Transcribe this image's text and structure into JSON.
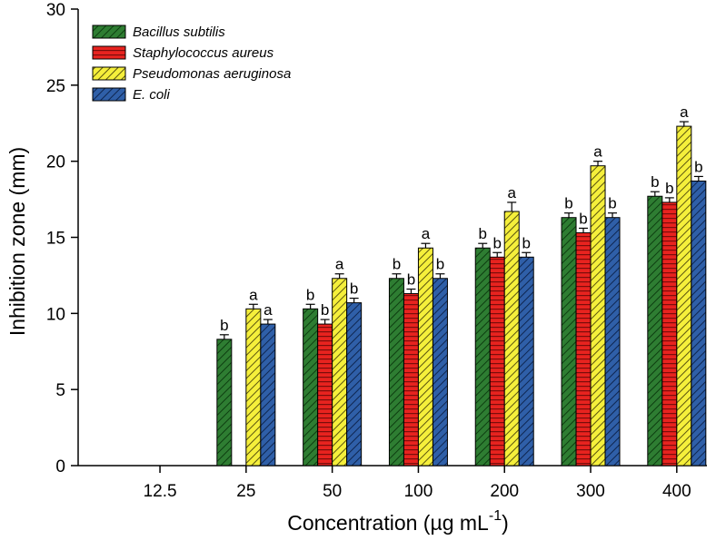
{
  "chart_data": {
    "type": "bar",
    "title": "",
    "xlabel": "Concentration (µg mL",
    "xlabel_superscript": "-1",
    "xlabel_suffix": ")",
    "ylabel": "Inhibition zone (mm)",
    "ylim": [
      0,
      30
    ],
    "yticks": [
      0,
      5,
      10,
      15,
      20,
      25,
      30
    ],
    "categories": [
      "12.5",
      "25",
      "50",
      "100",
      "200",
      "300",
      "400"
    ],
    "legend_position": "top-left",
    "series": [
      {
        "name": "Bacillus subtilis",
        "color": "#2e7d32",
        "pattern": "diagonal",
        "values": [
          null,
          8.3,
          10.3,
          12.3,
          14.3,
          16.3,
          17.7
        ],
        "errors": [
          null,
          0.3,
          0.3,
          0.3,
          0.3,
          0.3,
          0.3
        ],
        "labels": [
          "",
          "b",
          "b",
          "b",
          "b",
          "b",
          "b"
        ]
      },
      {
        "name": "Staphylococcus aureus",
        "color": "#e8231f",
        "pattern": "horizontal",
        "values": [
          null,
          null,
          9.3,
          11.3,
          13.7,
          15.3,
          17.3
        ],
        "errors": [
          null,
          null,
          0.3,
          0.3,
          0.3,
          0.3,
          0.3
        ],
        "labels": [
          "",
          "",
          "b",
          "b",
          "b",
          "b",
          "b"
        ]
      },
      {
        "name": "Pseudomonas aeruginosa",
        "color": "#f5ef3b",
        "pattern": "diagonal",
        "values": [
          null,
          10.3,
          12.3,
          14.3,
          16.7,
          19.7,
          22.3
        ],
        "errors": [
          null,
          0.3,
          0.3,
          0.3,
          0.6,
          0.3,
          0.3
        ],
        "labels": [
          "",
          "a",
          "a",
          "a",
          "a",
          "a",
          "a"
        ]
      },
      {
        "name": "E. coli",
        "color": "#2f5fa8",
        "pattern": "diagonal",
        "values": [
          null,
          9.3,
          10.7,
          12.3,
          13.7,
          16.3,
          18.7
        ],
        "errors": [
          null,
          0.3,
          0.3,
          0.3,
          0.3,
          0.3,
          0.3
        ],
        "labels": [
          "",
          "a",
          "b",
          "b",
          "b",
          "b",
          "b"
        ]
      }
    ]
  }
}
